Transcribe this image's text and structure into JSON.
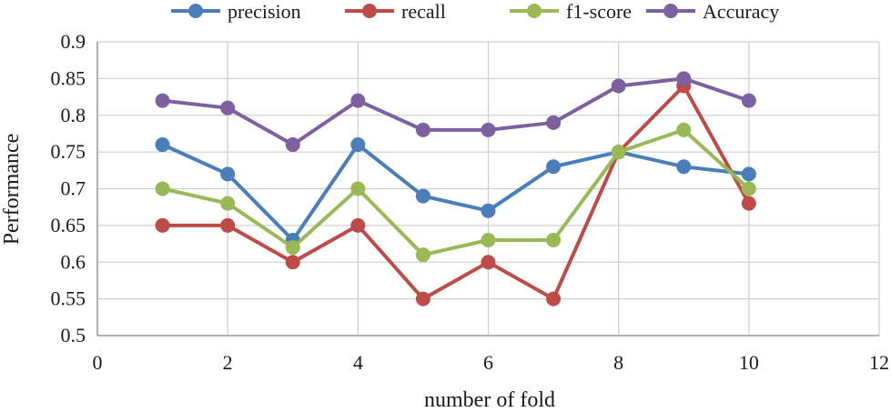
{
  "chart_data": {
    "type": "line",
    "title": "",
    "xlabel": "number of  fold",
    "ylabel": "Performance",
    "xlim": [
      0,
      12
    ],
    "ylim": [
      0.5,
      0.9
    ],
    "xticks": [
      0,
      2,
      4,
      6,
      8,
      10,
      12
    ],
    "xtick_labels": [
      "0",
      "2",
      "4",
      "6",
      "8",
      "10",
      "12"
    ],
    "yticks": [
      0.5,
      0.55,
      0.6,
      0.65,
      0.7,
      0.75,
      0.8,
      0.85,
      0.9
    ],
    "ytick_labels": [
      "0.5",
      "0.55",
      "0.6",
      "0.65",
      "0.7",
      "0.75",
      "0.8",
      "0.85",
      "0.9"
    ],
    "grid": true,
    "legend_position": "top",
    "x": [
      1,
      2,
      3,
      4,
      5,
      6,
      7,
      8,
      9,
      10
    ],
    "series": [
      {
        "name": "precision",
        "color": "#4a7ebb",
        "values": [
          0.76,
          0.72,
          0.63,
          0.76,
          0.69,
          0.67,
          0.73,
          0.75,
          0.73,
          0.72
        ]
      },
      {
        "name": "recall",
        "color": "#be4b48",
        "values": [
          0.65,
          0.65,
          0.6,
          0.65,
          0.55,
          0.6,
          0.55,
          0.75,
          0.84,
          0.68
        ]
      },
      {
        "name": "f1-score",
        "color": "#98b954",
        "values": [
          0.7,
          0.68,
          0.62,
          0.7,
          0.61,
          0.63,
          0.63,
          0.75,
          0.78,
          0.7
        ]
      },
      {
        "name": "Accuracy",
        "color": "#7d60a0",
        "values": [
          0.82,
          0.81,
          0.76,
          0.82,
          0.78,
          0.78,
          0.79,
          0.84,
          0.85,
          0.82
        ]
      }
    ]
  }
}
